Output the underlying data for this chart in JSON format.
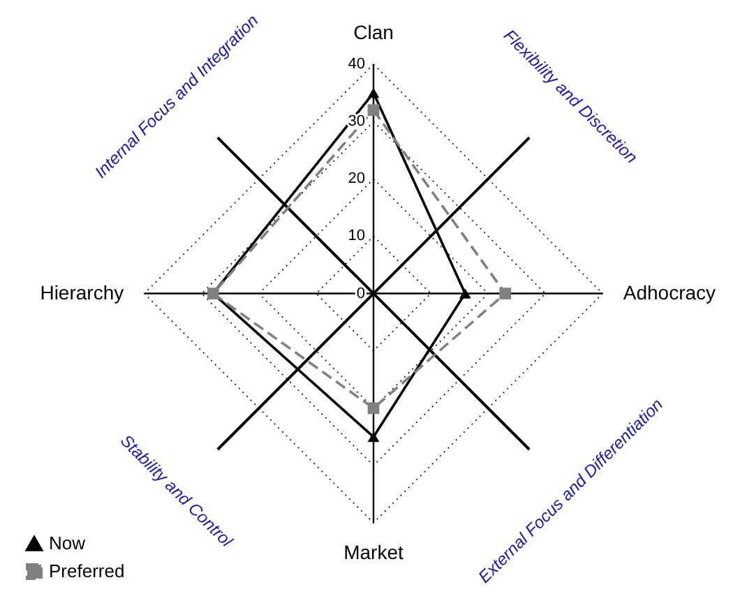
{
  "chart_data": {
    "type": "radar",
    "categories": [
      "Clan",
      "Adhocracy",
      "Market",
      "Hierarchy"
    ],
    "series": [
      {
        "name": "Now",
        "color": "#000000",
        "values": [
          35,
          16,
          25,
          28
        ],
        "marker": "triangle",
        "line_style": "solid"
      },
      {
        "name": "Preferred",
        "color": "#808080",
        "values": [
          32,
          23,
          20,
          28
        ],
        "marker": "square",
        "line_style": "dashed"
      }
    ],
    "ylim": [
      0,
      40
    ],
    "yticks": [
      0,
      10,
      20,
      30,
      40
    ],
    "grid": true,
    "legend": "bottom left",
    "annotations": [
      "Internal Focus and Integration",
      "Flexibility and Discretion",
      "Stability and Control",
      "External Focus and Differentiation"
    ]
  }
}
